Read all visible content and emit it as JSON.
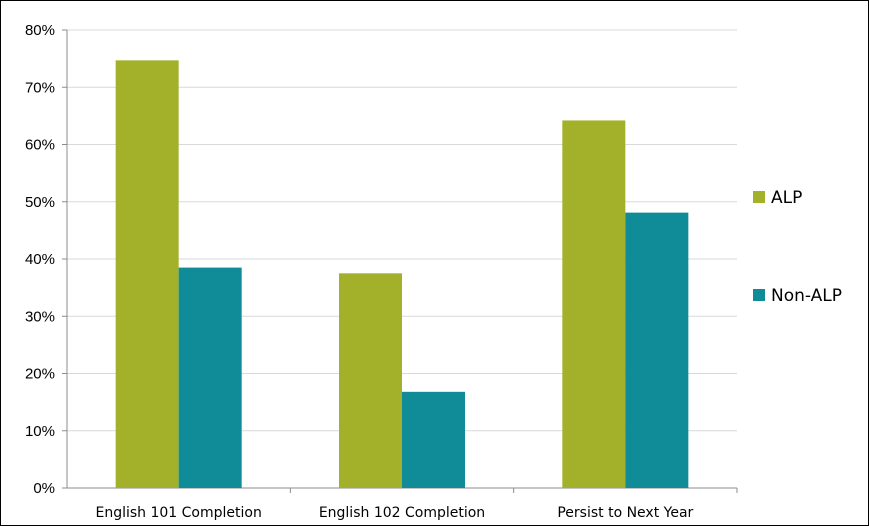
{
  "chart_data": {
    "type": "bar",
    "categories": [
      "English 101 Completion",
      "English 102 Completion",
      "Persist to Next Year"
    ],
    "series": [
      {
        "name": "ALP",
        "values": [
          74.7,
          37.5,
          64.2
        ],
        "color": "#a3b12a"
      },
      {
        "name": "Non-ALP",
        "values": [
          38.5,
          16.8,
          48.1
        ],
        "color": "#0f8c97"
      }
    ],
    "ylim": [
      0,
      80
    ],
    "yticks": [
      0,
      10,
      20,
      30,
      40,
      50,
      60,
      70,
      80
    ],
    "ytick_labels": [
      "0%",
      "10%",
      "20%",
      "30%",
      "40%",
      "50%",
      "60%",
      "70%",
      "80%"
    ],
    "grid": true,
    "legend_position": "right"
  }
}
